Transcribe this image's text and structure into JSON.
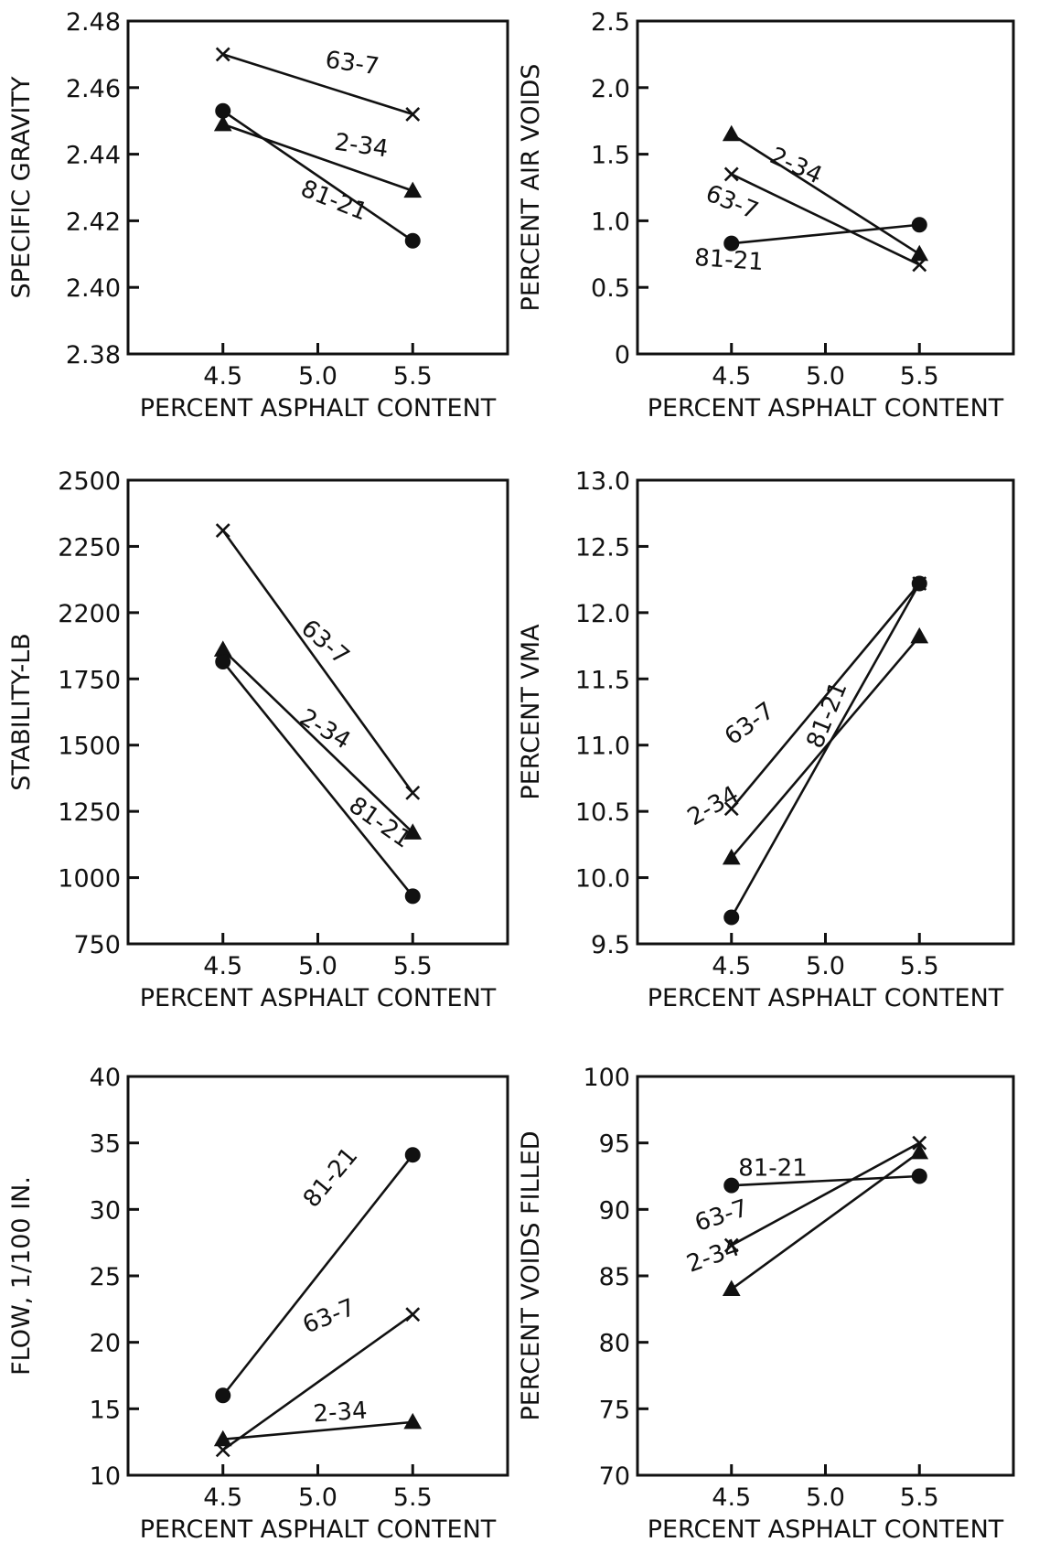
{
  "chart_data": [
    {
      "type": "line",
      "xlabel": "PERCENT ASPHALT CONTENT",
      "ylabel": "SPECIFIC GRAVITY",
      "x": [
        4.5,
        5.5
      ],
      "xticks": [
        "4.5",
        "5.0",
        "5.5"
      ],
      "xlim": [
        4.0,
        6.0
      ],
      "yticks": [
        "2.48",
        "2.46",
        "2.44",
        "2.42",
        "2.40",
        "2.38"
      ],
      "ylim": [
        2.38,
        2.48
      ],
      "series": [
        {
          "name": "63-7",
          "marker": "x",
          "values": [
            2.47,
            2.452
          ]
        },
        {
          "name": "2-34",
          "marker": "triangle",
          "values": [
            2.449,
            2.429
          ]
        },
        {
          "name": "81-21",
          "marker": "circle",
          "values": [
            2.453,
            2.414
          ]
        }
      ]
    },
    {
      "type": "line",
      "xlabel": "PERCENT ASPHALT CONTENT",
      "ylabel": "PERCENT AIR VOIDS",
      "x": [
        4.5,
        5.5
      ],
      "xticks": [
        "4.5",
        "5.0",
        "5.5"
      ],
      "xlim": [
        4.0,
        6.0
      ],
      "yticks": [
        "2.5",
        "2.0",
        "1.5",
        "1.0",
        "0.5",
        "0"
      ],
      "ylim": [
        0,
        2.5
      ],
      "series": [
        {
          "name": "2-34",
          "marker": "triangle",
          "values": [
            1.65,
            0.75
          ]
        },
        {
          "name": "63-7",
          "marker": "x",
          "values": [
            1.35,
            0.67
          ]
        },
        {
          "name": "81-21",
          "marker": "circle",
          "values": [
            0.83,
            0.97
          ]
        }
      ]
    },
    {
      "type": "line",
      "xlabel": "PERCENT ASPHALT CONTENT",
      "ylabel": "STABILITY-LB",
      "x": [
        4.5,
        5.5
      ],
      "xticks": [
        "4.5",
        "5.0",
        "5.5"
      ],
      "xlim": [
        4.0,
        6.0
      ],
      "yticks": [
        "2500",
        "2250",
        "2200",
        "1750",
        "1500",
        "1250",
        "1000",
        "750"
      ],
      "ylim": [
        750,
        2500
      ],
      "series": [
        {
          "name": "63-7",
          "marker": "x",
          "values": [
            2310,
            1320
          ]
        },
        {
          "name": "2-34",
          "marker": "triangle",
          "values": [
            1860,
            1170
          ]
        },
        {
          "name": "81-21",
          "marker": "circle",
          "values": [
            1815,
            930
          ]
        }
      ]
    },
    {
      "type": "line",
      "xlabel": "PERCENT ASPHALT CONTENT",
      "ylabel": "PERCENT VMA",
      "x": [
        4.5,
        5.5
      ],
      "xticks": [
        "4.5",
        "5.0",
        "5.5"
      ],
      "xlim": [
        4.0,
        6.0
      ],
      "yticks": [
        "13.0",
        "12.5",
        "12.0",
        "11.5",
        "11.0",
        "10.5",
        "10.0",
        "9.5"
      ],
      "ylim": [
        9.5,
        13.0
      ],
      "series": [
        {
          "name": "63-7",
          "marker": "x",
          "values": [
            10.52,
            12.22
          ]
        },
        {
          "name": "2-34",
          "marker": "triangle",
          "values": [
            10.15,
            11.82
          ]
        },
        {
          "name": "81-21",
          "marker": "circle",
          "values": [
            9.7,
            12.22
          ]
        }
      ]
    },
    {
      "type": "line",
      "xlabel": "PERCENT ASPHALT CONTENT",
      "ylabel": "FLOW, 1/100 IN.",
      "x": [
        4.5,
        5.5
      ],
      "xticks": [
        "4.5",
        "5.0",
        "5.5"
      ],
      "xlim": [
        4.0,
        6.0
      ],
      "yticks": [
        "40",
        "35",
        "30",
        "25",
        "20",
        "15",
        "10"
      ],
      "ylim": [
        10,
        40
      ],
      "series": [
        {
          "name": "81-21",
          "marker": "circle",
          "values": [
            16.0,
            34.1
          ]
        },
        {
          "name": "63-7",
          "marker": "x",
          "values": [
            11.9,
            22.1
          ]
        },
        {
          "name": "2-34",
          "marker": "triangle",
          "values": [
            12.7,
            14.0
          ]
        }
      ]
    },
    {
      "type": "line",
      "xlabel": "PERCENT ASPHALT CONTENT",
      "ylabel": "PERCENT VOIDS FILLED",
      "x": [
        4.5,
        5.5
      ],
      "xticks": [
        "4.5",
        "5.0",
        "5.5"
      ],
      "xlim": [
        4.0,
        6.0
      ],
      "yticks": [
        "100",
        "95",
        "90",
        "85",
        "80",
        "75",
        "70"
      ],
      "ylim": [
        70,
        100
      ],
      "series": [
        {
          "name": "81-21",
          "marker": "circle",
          "values": [
            91.8,
            92.5
          ]
        },
        {
          "name": "63-7",
          "marker": "x",
          "values": [
            87.3,
            95.0
          ]
        },
        {
          "name": "2-34",
          "marker": "triangle",
          "values": [
            84.0,
            94.3
          ]
        }
      ]
    }
  ]
}
